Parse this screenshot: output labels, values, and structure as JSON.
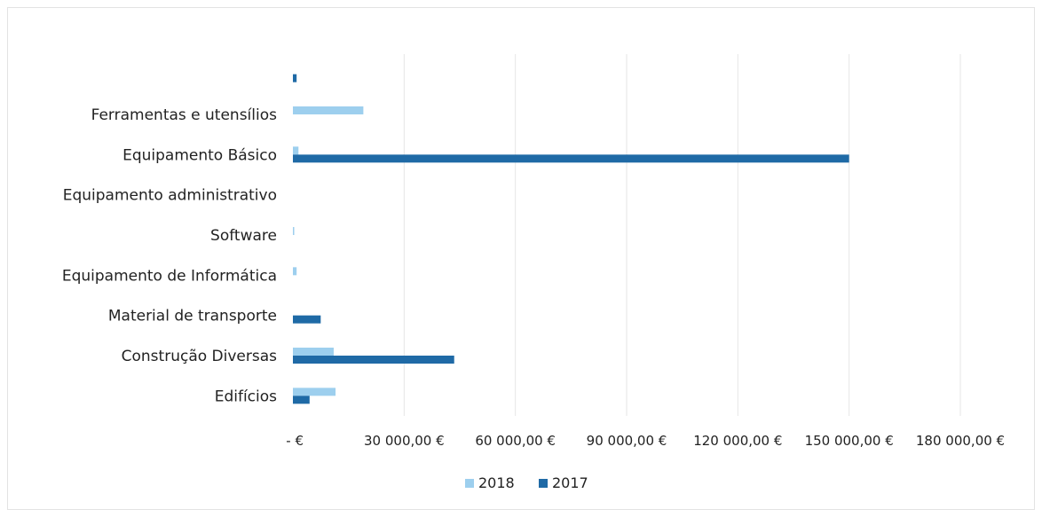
{
  "chart_data": {
    "type": "bar",
    "orientation": "horizontal",
    "categories": [
      "",
      "Ferramentas e utensílios",
      "Equipamento Básico",
      "Equipamento administrativo",
      "Software",
      "Equipamento de Informática",
      "Material de transporte",
      "Construção Diversas",
      "Edifícios"
    ],
    "series": [
      {
        "name": "2018",
        "color": "#9dcfee",
        "values": [
          0,
          19000,
          1500,
          0,
          200,
          1000,
          0,
          11000,
          11500
        ]
      },
      {
        "name": "2017",
        "color": "#1f6aa6",
        "values": [
          1000,
          0,
          150000,
          0,
          0,
          0,
          7500,
          43500,
          4500
        ]
      }
    ],
    "xlim": [
      0,
      180000
    ],
    "x_ticks": [
      0,
      30000,
      60000,
      90000,
      120000,
      150000,
      180000
    ],
    "x_tick_labels": [
      "-   €",
      "30 000,00 €",
      "60 000,00 €",
      "90 000,00 €",
      "120 000,00 €",
      "150 000,00 €",
      "180 000,00 €"
    ],
    "grid": true,
    "legend": "bottom"
  }
}
